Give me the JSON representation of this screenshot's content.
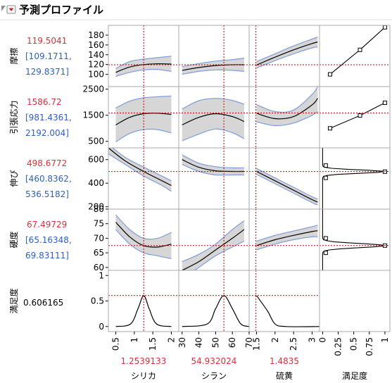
{
  "title": "予測プロファイル",
  "responses": [
    {
      "name": "摩擦",
      "value": "119.5041",
      "ci_low": "[109.1711,",
      "ci_high": "129.8371]"
    },
    {
      "name": "引張応力",
      "value": "1586.72",
      "ci_low": "[981.4361,",
      "ci_high": "2192.004]"
    },
    {
      "name": "伸び",
      "value": "498.6772",
      "ci_low": "[460.8362,",
      "ci_high": "536.5182]"
    },
    {
      "name": "硬度",
      "value": "67.49729",
      "ci_low": "[65.16348,",
      "ci_high": "69.83111]"
    },
    {
      "name": "満足度",
      "value": "0.606165"
    }
  ],
  "factors": [
    {
      "name": "シリカ",
      "current": "1.2539133"
    },
    {
      "name": "シラン",
      "current": "54.932024"
    },
    {
      "name": "硫黄",
      "current": "1.4835"
    }
  ],
  "desirability_label": "満足度",
  "colors": {
    "value": "#d9303a",
    "ci": "#2b5fc9",
    "band_fill": "#d6d6d6",
    "band_edge": "#7f9ddb",
    "refline": "#c00000"
  },
  "chart_data": {
    "type": "line",
    "x_axes": [
      {
        "factor": "シリカ",
        "range": [
          0.3,
          2.2
        ],
        "ticks": [
          0.5,
          1,
          1.5,
          2
        ],
        "tick_labels": [
          "0.5",
          "1",
          "1.5",
          "2"
        ]
      },
      {
        "factor": "シラン",
        "range": [
          28,
          70
        ],
        "ticks": [
          30,
          40,
          50,
          60,
          70
        ],
        "tick_labels": [
          "30",
          "40",
          "50",
          "60",
          "70"
        ]
      },
      {
        "factor": "硫黄",
        "range": [
          1.3,
          3.2
        ],
        "ticks": [
          1.5,
          2,
          2.5,
          3
        ],
        "tick_labels": [
          "1.5",
          "2",
          "2.5",
          "3"
        ]
      },
      {
        "factor": "満足度",
        "range": [
          -0.05,
          1.08
        ],
        "ticks": [
          0,
          0.25,
          0.5,
          0.75,
          1
        ],
        "tick_labels": [
          "0",
          "0.25",
          "0.5",
          "0.75",
          "1"
        ]
      }
    ],
    "factor_current": [
      1.2539133,
      54.932024,
      1.4835
    ],
    "rows": [
      {
        "response": "摩擦",
        "range": [
          75,
          200
        ],
        "ticks": [
          100,
          120,
          140,
          160,
          180
        ],
        "current": 119.5041,
        "panels": [
          {
            "x": [
              0.5,
              0.875,
              1.25,
              1.625,
              2.0
            ],
            "y": [
              104,
              115,
              120,
              121.5,
              121
            ],
            "lo": [
              96,
              104,
              109,
              110,
              106
            ],
            "hi": [
              112,
              126,
              131,
              134,
              137
            ]
          },
          {
            "x": [
              30,
              40,
              50,
              60,
              67
            ],
            "y": [
              108,
              114,
              118,
              119.5,
              119.5
            ],
            "lo": [
              100,
              106,
              109,
              108,
              106
            ],
            "hi": [
              116,
              122,
              127,
              130,
              133
            ]
          },
          {
            "x": [
              1.5,
              2.0,
              2.5,
              3.0,
              3.15
            ],
            "y": [
              119,
              135,
              150,
              163,
              166
            ],
            "lo": [
              113,
              128,
              142,
              154,
              156
            ],
            "hi": [
              126,
              142,
              158,
              172,
              176
            ]
          }
        ],
        "desirability": {
          "x": [
            0.12,
            0.6,
            1.0
          ],
          "y": [
            100,
            150,
            196
          ],
          "markers": [
            0.12,
            0.6,
            1.0
          ]
        }
      },
      {
        "response": "引張応力",
        "range": [
          250,
          2600
        ],
        "ticks": [
          500,
          1500,
          2500
        ],
        "current": 1586.72,
        "panels": [
          {
            "x": [
              0.5,
              0.875,
              1.25,
              1.625,
              2.0
            ],
            "y": [
              1130,
              1420,
              1560,
              1580,
              1530
            ],
            "lo": [
              480,
              800,
              950,
              950,
              820
            ],
            "hi": [
              1780,
              2040,
              2170,
              2210,
              2240
            ]
          },
          {
            "x": [
              30,
              40,
              50,
              60,
              67
            ],
            "y": [
              1130,
              1420,
              1560,
              1450,
              1260
            ],
            "lo": [
              520,
              780,
              970,
              830,
              600
            ],
            "hi": [
              1740,
              2060,
              2150,
              2070,
              1920
            ]
          },
          {
            "x": [
              1.5,
              2.0,
              2.5,
              3.0,
              3.15
            ],
            "y": [
              1580,
              1370,
              1450,
              1900,
              2150
            ],
            "lo": [
              1250,
              1100,
              1200,
              1500,
              1650
            ],
            "hi": [
              1910,
              1640,
              1700,
              2300,
              2600
            ]
          }
        ],
        "desirability": {
          "x": [
            0.12,
            0.6,
            1.0
          ],
          "y": [
            1000,
            1490,
            1980
          ],
          "markers": [
            0.12,
            0.6,
            1.0
          ]
        }
      },
      {
        "response": "伸び",
        "range": [
          180,
          700
        ],
        "ticks": [
          200,
          400,
          600
        ],
        "current": 498.6772,
        "panels": [
          {
            "x": [
              0.3,
              0.75,
              1.25,
              1.75,
              2.0
            ],
            "y": [
              700,
              590,
              500,
              420,
              380
            ],
            "lo": [
              650,
              560,
              461,
              380,
              330
            ],
            "hi": [
              730,
              620,
              537,
              460,
              420
            ]
          },
          {
            "x": [
              30,
              40,
              50,
              60,
              67
            ],
            "y": [
              600,
              535,
              505,
              500,
              500
            ],
            "lo": [
              560,
              500,
              470,
              470,
              470
            ],
            "hi": [
              640,
              570,
              540,
              530,
              530
            ]
          },
          {
            "x": [
              1.5,
              2.0,
              2.5,
              3.0,
              3.15
            ],
            "y": [
              500,
              420,
              340,
              260,
              240
            ],
            "lo": [
              475,
              395,
              315,
              235,
              215
            ],
            "hi": [
              525,
              445,
              365,
              285,
              265
            ]
          }
        ],
        "desirability": {
          "peak": 498.6772,
          "width": 20,
          "markers": [
            {
              "x": 0.05,
              "y": 550
            },
            {
              "x": 1.0,
              "y": 498
            },
            {
              "x": 0.05,
              "y": 445
            }
          ]
        }
      },
      {
        "response": "硬度",
        "range": [
          59,
          80
        ],
        "ticks": [
          60,
          65,
          70,
          75,
          80
        ],
        "current": 67.49729,
        "panels": [
          {
            "x": [
              0.5,
              0.875,
              1.25,
              1.625,
              2.0
            ],
            "y": [
              75.5,
              70.5,
              67.5,
              67,
              68
            ],
            "lo": [
              73,
              68,
              65,
              64,
              63
            ],
            "hi": [
              78,
              73,
              70,
              70,
              72
            ]
          },
          {
            "x": [
              30,
              40,
              50,
              60,
              67
            ],
            "y": [
              59,
              62,
              66,
              70,
              73
            ],
            "lo": [
              56,
              60,
              64,
              67,
              69
            ],
            "hi": [
              62,
              64.5,
              68,
              73,
              76
            ]
          },
          {
            "x": [
              1.5,
              2.0,
              2.5,
              3.0,
              3.15
            ],
            "y": [
              67.5,
              69.5,
              71,
              72.3,
              72.6
            ],
            "lo": [
              66,
              68,
              69.5,
              70.5,
              70.5
            ],
            "hi": [
              69,
              71,
              72.5,
              74,
              74.5
            ]
          }
        ],
        "desirability": {
          "peak": 67.49729,
          "width": 1.0,
          "markers": [
            {
              "x": 0.05,
              "y": 70
            },
            {
              "x": 1.0,
              "y": 67.5
            },
            {
              "x": 0.05,
              "y": 65
            }
          ]
        }
      },
      {
        "response": "満足度",
        "range": [
          -0.1,
          1.1
        ],
        "ticks": [
          0,
          0.5,
          1
        ],
        "tick_labels": [
          "0",
          "0.5",
          "1"
        ],
        "current": 0.606165,
        "panels": [
          {
            "x": [
              0.5,
              0.9,
              1.1,
              1.2539,
              1.4,
              1.6,
              2.0
            ],
            "y": [
              0,
              0.05,
              0.35,
              0.606,
              0.35,
              0.05,
              0
            ]
          },
          {
            "x": [
              30,
              45,
              50,
              54.93,
              60,
              65,
              70
            ],
            "y": [
              0,
              0.05,
              0.35,
              0.606,
              0.35,
              0.05,
              0
            ]
          },
          {
            "x": [
              1.5,
              1.8,
              2.0,
              2.3,
              3.2
            ],
            "y": [
              0.606,
              0.3,
              0.05,
              0,
              0
            ]
          }
        ]
      }
    ]
  }
}
